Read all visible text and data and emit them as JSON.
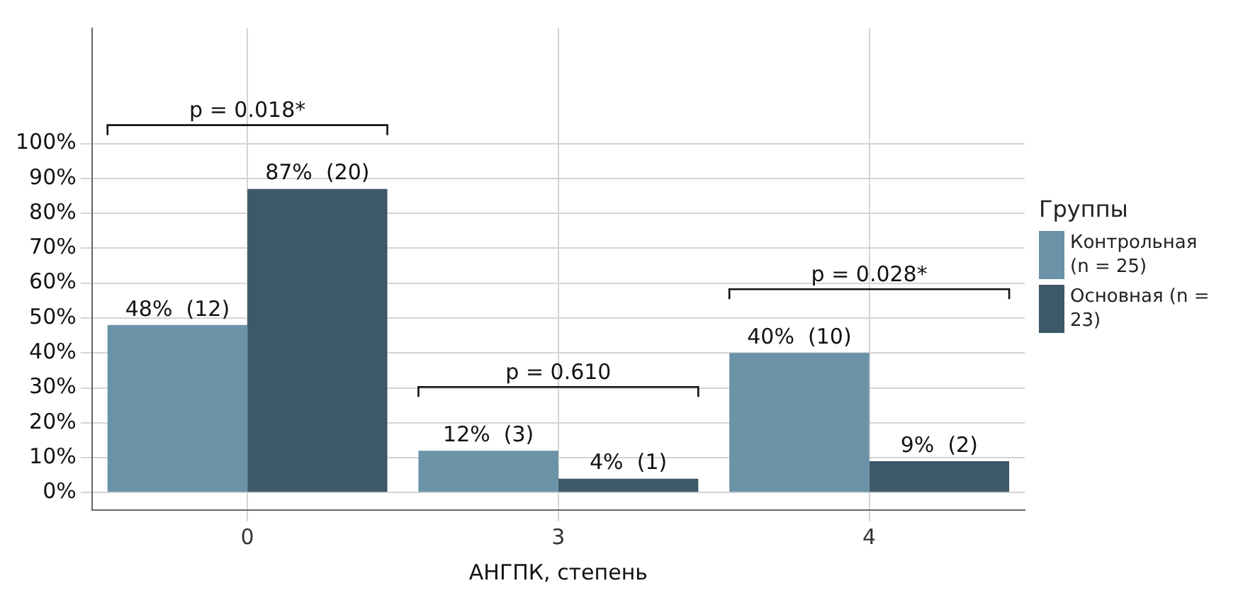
{
  "chart_data": {
    "type": "bar",
    "xlabel": "АНГПК, степень",
    "legend_title": "Группы",
    "legend": "right",
    "grid": true,
    "categories": [
      "0",
      "3",
      "4"
    ],
    "series": [
      {
        "name": "Контрольная (n = 25)",
        "color": "#6a93a8",
        "values": [
          48,
          12,
          40
        ],
        "value_labels": [
          "48%  (12)",
          "12%  (3)",
          "40%  (10)"
        ]
      },
      {
        "name": "Основная (n = 23)",
        "color": "#3d5866",
        "values": [
          87,
          4,
          9
        ],
        "value_labels": [
          "87%  (20)",
          "4%  (1)",
          "9%  (2)"
        ]
      }
    ],
    "ylim": [
      -5,
      133
    ],
    "yticks": [
      {
        "value": 0,
        "label": "0%"
      },
      {
        "value": 10,
        "label": "10%"
      },
      {
        "value": 20,
        "label": "20%"
      },
      {
        "value": 30,
        "label": "30%"
      },
      {
        "value": 40,
        "label": "40%"
      },
      {
        "value": 50,
        "label": "50%"
      },
      {
        "value": 60,
        "label": "60%"
      },
      {
        "value": 70,
        "label": "70%"
      },
      {
        "value": 80,
        "label": "80%"
      },
      {
        "value": 90,
        "label": "90%"
      },
      {
        "value": 100,
        "label": "100%"
      }
    ],
    "annotations": [
      "p = 0.018*",
      "p = 0.610",
      "p = 0.028*"
    ]
  }
}
